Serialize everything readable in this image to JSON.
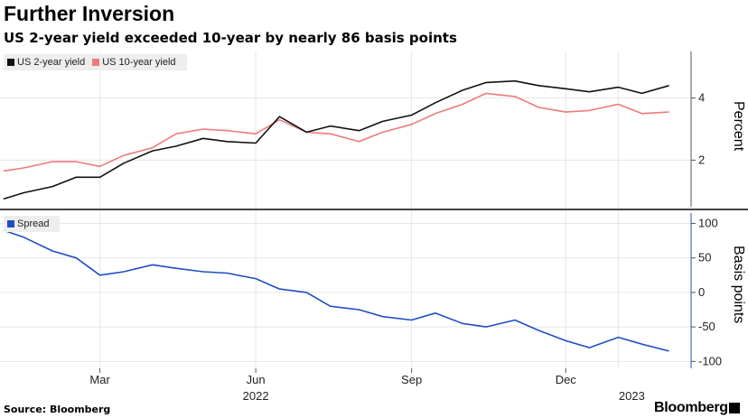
{
  "title": "Further Inversion",
  "subtitle": "US 2-year yield exceeded 10-year by nearly 86 basis points",
  "source": "Source: Bloomberg",
  "brand": "Bloomberg",
  "colors": {
    "us2": "#111111",
    "us10": "#ee7b7b",
    "spread": "#1f4fc4",
    "grid": "#e6e6e6"
  },
  "chart_data": [
    {
      "type": "line",
      "title": "",
      "ylabel": "Percent",
      "ylim": [
        0.5,
        5.5
      ],
      "yticks": [
        2,
        4
      ],
      "grid": true,
      "legend_position": "top-left",
      "x": [
        "2022-01-03",
        "2022-01-15",
        "2022-02-01",
        "2022-02-15",
        "2022-03-01",
        "2022-03-15",
        "2022-04-01",
        "2022-04-15",
        "2022-05-01",
        "2022-05-15",
        "2022-06-01",
        "2022-06-15",
        "2022-07-01",
        "2022-07-15",
        "2022-08-01",
        "2022-08-15",
        "2022-09-01",
        "2022-09-15",
        "2022-10-01",
        "2022-10-15",
        "2022-11-01",
        "2022-11-15",
        "2022-12-01",
        "2022-12-15",
        "2023-01-01",
        "2023-01-15",
        "2023-01-31"
      ],
      "series": [
        {
          "name": "US 2-year yield",
          "values": [
            0.75,
            0.95,
            1.15,
            1.45,
            1.45,
            1.9,
            2.3,
            2.45,
            2.7,
            2.6,
            2.55,
            3.4,
            2.9,
            3.1,
            2.95,
            3.25,
            3.45,
            3.85,
            4.25,
            4.5,
            4.55,
            4.4,
            4.3,
            4.2,
            4.35,
            4.15,
            4.4
          ]
        },
        {
          "name": "US 10-year yield",
          "values": [
            1.65,
            1.75,
            1.95,
            1.95,
            1.8,
            2.15,
            2.4,
            2.85,
            3.0,
            2.95,
            2.85,
            3.3,
            2.9,
            2.85,
            2.6,
            2.9,
            3.15,
            3.5,
            3.8,
            4.15,
            4.05,
            3.7,
            3.55,
            3.6,
            3.8,
            3.5,
            3.55
          ]
        }
      ]
    },
    {
      "type": "line",
      "title": "",
      "ylabel": "Basis points",
      "ylim": [
        -110,
        115
      ],
      "yticks": [
        100,
        50,
        0,
        -50,
        -100
      ],
      "grid": true,
      "legend_position": "top-left",
      "xtick_labels": [
        "Mar",
        "Jun",
        "Sep",
        "Dec"
      ],
      "xtick_dates": [
        "2022-03-01",
        "2022-06-01",
        "2022-09-01",
        "2022-12-01"
      ],
      "year_labels": [
        "2022",
        "2023"
      ],
      "year_positions": [
        "2022-06-01",
        "2023-01-01"
      ],
      "x": [
        "2022-01-03",
        "2022-01-15",
        "2022-02-01",
        "2022-02-15",
        "2022-03-01",
        "2022-03-15",
        "2022-04-01",
        "2022-04-15",
        "2022-05-01",
        "2022-05-15",
        "2022-06-01",
        "2022-06-15",
        "2022-07-01",
        "2022-07-15",
        "2022-08-01",
        "2022-08-15",
        "2022-09-01",
        "2022-09-15",
        "2022-10-01",
        "2022-10-15",
        "2022-11-01",
        "2022-11-15",
        "2022-12-01",
        "2022-12-15",
        "2023-01-01",
        "2023-01-15",
        "2023-01-31"
      ],
      "series": [
        {
          "name": "Spread",
          "values": [
            90,
            80,
            60,
            50,
            25,
            30,
            40,
            35,
            30,
            28,
            20,
            5,
            0,
            -20,
            -25,
            -35,
            -40,
            -30,
            -45,
            -50,
            -40,
            -55,
            -70,
            -80,
            -65,
            -75,
            -85
          ]
        }
      ]
    }
  ]
}
